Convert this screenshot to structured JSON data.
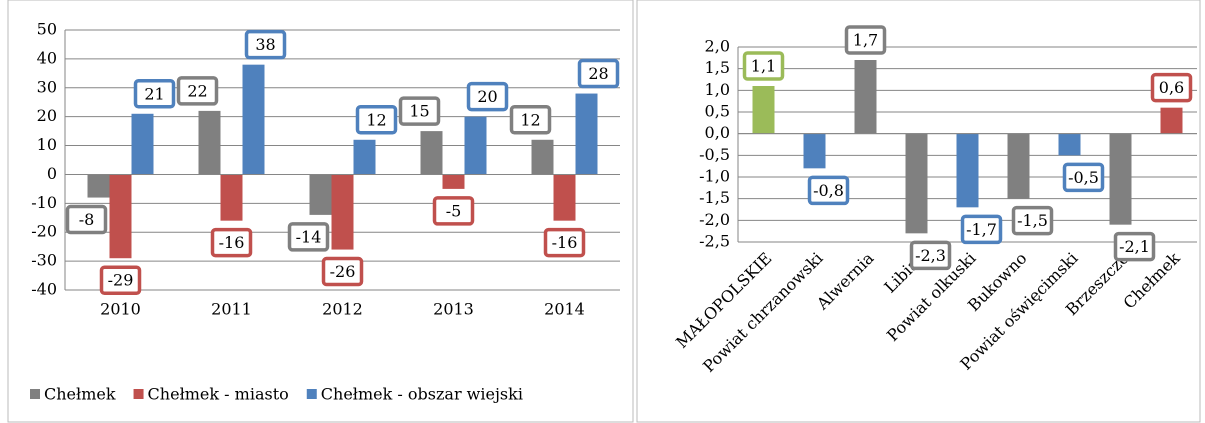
{
  "chart_data": [
    {
      "type": "bar",
      "categories": [
        "2010",
        "2011",
        "2012",
        "2013",
        "2014"
      ],
      "series": [
        {
          "name": "Chełmek",
          "color": "#808080",
          "values": [
            -8,
            22,
            -14,
            15,
            12
          ]
        },
        {
          "name": "Chełmek - miasto",
          "color": "#c0504d",
          "values": [
            -29,
            -16,
            -26,
            -5,
            -16
          ]
        },
        {
          "name": "Chełmek - obszar wiejski",
          "color": "#4f81bd",
          "values": [
            21,
            38,
            12,
            20,
            28
          ]
        }
      ],
      "ylim": [
        -40,
        50
      ],
      "yticks": [
        -40,
        -30,
        -20,
        -10,
        0,
        10,
        20,
        30,
        40,
        50
      ],
      "grid": true,
      "legend": "bottom"
    },
    {
      "type": "bar",
      "categories": [
        "MAŁOPOLSKIE",
        "Powiat chrzanowski",
        "Alwernia",
        "Libiąż",
        "Powiat olkuski",
        "Bukowno",
        "Powiat oświęcimski",
        "Brzeszcze",
        "Chełmek"
      ],
      "values": [
        1.1,
        -0.8,
        1.7,
        -2.3,
        -1.7,
        -1.5,
        -0.5,
        -2.1,
        0.6
      ],
      "value_labels": [
        "1,1",
        "-0,8",
        "1,7",
        "-2,3",
        "-1,7",
        "-1,5",
        "-0,5",
        "-2,1",
        "0,6"
      ],
      "colors": [
        "#9bbb59",
        "#4f81bd",
        "#808080",
        "#808080",
        "#4f81bd",
        "#808080",
        "#4f81bd",
        "#808080",
        "#c0504d"
      ],
      "ylim": [
        -2.5,
        2.0
      ],
      "yticks": [
        {
          "value": -2.5,
          "label": "-2,5"
        },
        {
          "value": -2,
          "label": "-2,0"
        },
        {
          "value": -1.5,
          "label": "-1,5"
        },
        {
          "value": -1,
          "label": "-1,0"
        },
        {
          "value": -0.5,
          "label": "-0,5"
        },
        {
          "value": 0,
          "label": "0,0"
        },
        {
          "value": 0.5,
          "label": "0,5"
        },
        {
          "value": 1,
          "label": "1,0"
        },
        {
          "value": 1.5,
          "label": "1,5"
        },
        {
          "value": 2,
          "label": "2,0"
        }
      ],
      "grid": true
    }
  ]
}
